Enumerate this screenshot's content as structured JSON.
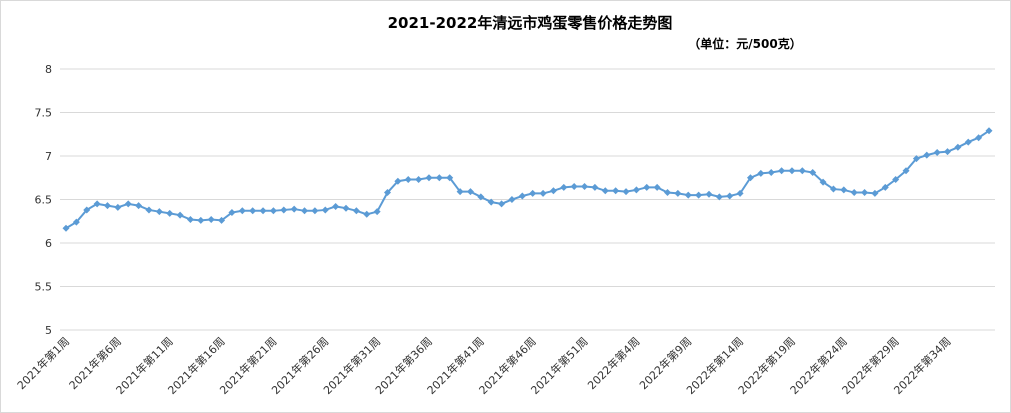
{
  "chart_data": {
    "type": "line",
    "title": "2021-2022年清远市鸡蛋零售价格走势图",
    "subtitle": "（单位：元/500克）",
    "categories": [
      "2021年第1周",
      null,
      null,
      null,
      null,
      "2021年第6周",
      null,
      null,
      null,
      null,
      "2021年第11周",
      null,
      null,
      null,
      null,
      "2021年第16周",
      null,
      null,
      null,
      null,
      "2021年第21周",
      null,
      null,
      null,
      null,
      "2021年第26周",
      null,
      null,
      null,
      null,
      "2021年第31周",
      null,
      null,
      null,
      null,
      "2021年第36周",
      null,
      null,
      null,
      null,
      "2021年第41周",
      null,
      null,
      null,
      null,
      "2021年第46周",
      null,
      null,
      null,
      null,
      "2021年第51周",
      null,
      null,
      null,
      null,
      "2022年第4周",
      null,
      null,
      null,
      null,
      "2022年第9周",
      null,
      null,
      null,
      null,
      "2022年第14周",
      null,
      null,
      null,
      null,
      "2022年第19周",
      null,
      null,
      null,
      null,
      "2022年第24周",
      null,
      null,
      null,
      null,
      "2022年第29周",
      null,
      null,
      null,
      null,
      "2022年第34周",
      null,
      null,
      null,
      null
    ],
    "series": [
      {
        "name": "清远市鸡蛋零售价格",
        "color": "#5b9bd5",
        "values": [
          6.17,
          6.24,
          6.38,
          6.45,
          6.43,
          6.41,
          6.45,
          6.43,
          6.38,
          6.36,
          6.34,
          6.32,
          6.27,
          6.26,
          6.27,
          6.26,
          6.35,
          6.37,
          6.37,
          6.37,
          6.37,
          6.38,
          6.39,
          6.37,
          6.37,
          6.38,
          6.42,
          6.4,
          6.37,
          6.33,
          6.36,
          6.58,
          6.71,
          6.73,
          6.73,
          6.75,
          6.75,
          6.75,
          6.59,
          6.59,
          6.53,
          6.47,
          6.45,
          6.5,
          6.54,
          6.57,
          6.57,
          6.6,
          6.64,
          6.65,
          6.65,
          6.64,
          6.6,
          6.6,
          6.59,
          6.61,
          6.64,
          6.64,
          6.58,
          6.57,
          6.55,
          6.55,
          6.56,
          6.53,
          6.54,
          6.57,
          6.75,
          6.8,
          6.81,
          6.83,
          6.83,
          6.83,
          6.81,
          6.7,
          6.62,
          6.61,
          6.58,
          6.58,
          6.57,
          6.64,
          6.73,
          6.83,
          6.97,
          7.01,
          7.04,
          7.05,
          7.1,
          7.16,
          7.21,
          7.29
        ]
      }
    ],
    "ylim": [
      5,
      8
    ],
    "yticks": [
      5,
      5.5,
      6,
      6.5,
      7,
      7.5,
      8
    ],
    "grid": true
  }
}
